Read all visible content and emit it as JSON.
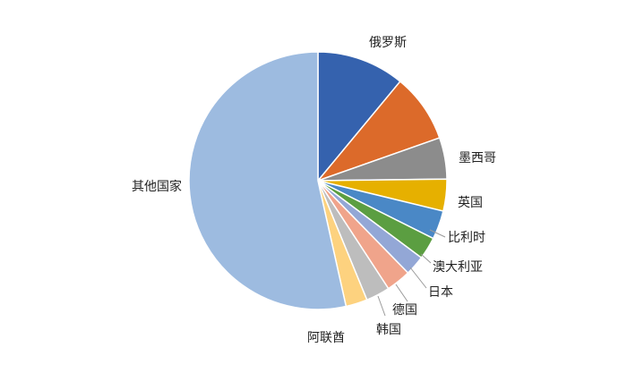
{
  "chart_data": {
    "type": "pie",
    "title": "",
    "slices": [
      {
        "label": "俄罗斯",
        "value": 11.0,
        "color": "#3562ae"
      },
      {
        "label": "",
        "value": 8.6,
        "color": "#dc6a2a"
      },
      {
        "label": "墨西哥",
        "value": 5.2,
        "color": "#8c8c8c"
      },
      {
        "label": "英国",
        "value": 4.0,
        "color": "#e6b000"
      },
      {
        "label": "比利时",
        "value": 3.6,
        "color": "#4a88c6"
      },
      {
        "label": "澳大利亚",
        "value": 2.8,
        "color": "#5b9e41"
      },
      {
        "label": "日本",
        "value": 2.5,
        "color": "#93a7d6"
      },
      {
        "label": "德国",
        "value": 3.1,
        "color": "#f0a48b"
      },
      {
        "label": "韩国",
        "value": 3.0,
        "color": "#bdbdbd"
      },
      {
        "label": "阿联酋",
        "value": 2.7,
        "color": "#fdd27f"
      },
      {
        "label": "其他国家",
        "value": 53.5,
        "color": "#9dbbe0"
      }
    ]
  }
}
